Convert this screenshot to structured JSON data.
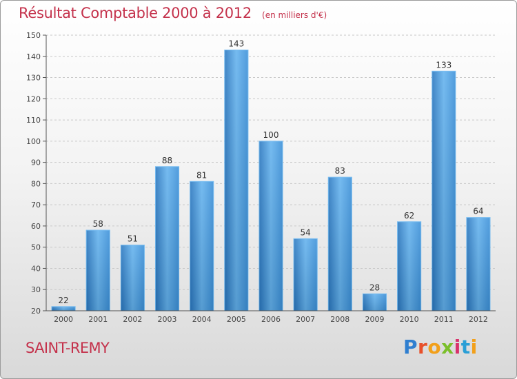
{
  "title": "Résultat Comptable 2000 à 2012",
  "unit_note": "(en milliers d'€)",
  "commune": "SAINT-REMY",
  "logo": {
    "letters": [
      "P",
      "r",
      "o",
      "x",
      "i",
      "t",
      "i"
    ],
    "colors": [
      "#2f7fd0",
      "#e8502a",
      "#f2a01b",
      "#7bbf2a",
      "#d8326b",
      "#2a9fd6",
      "#f2a01b"
    ]
  },
  "colors": {
    "bar": "#3a8fd8",
    "bar_light": "#63b2ee",
    "bar_dark": "#2876bf",
    "title": "#c4314b"
  },
  "chart_data": {
    "type": "bar",
    "title": "Résultat Comptable 2000 à 2012",
    "categories": [
      "2000",
      "2001",
      "2002",
      "2003",
      "2004",
      "2005",
      "2006",
      "2007",
      "2008",
      "2009",
      "2010",
      "2011",
      "2012"
    ],
    "values": [
      22,
      58,
      51,
      88,
      81,
      143,
      100,
      54,
      83,
      28,
      62,
      133,
      64
    ],
    "ylim": [
      20,
      150
    ],
    "yticks": [
      20,
      30,
      40,
      50,
      60,
      70,
      80,
      90,
      100,
      110,
      120,
      130,
      140,
      150
    ],
    "grid": true,
    "data_labels": true
  }
}
